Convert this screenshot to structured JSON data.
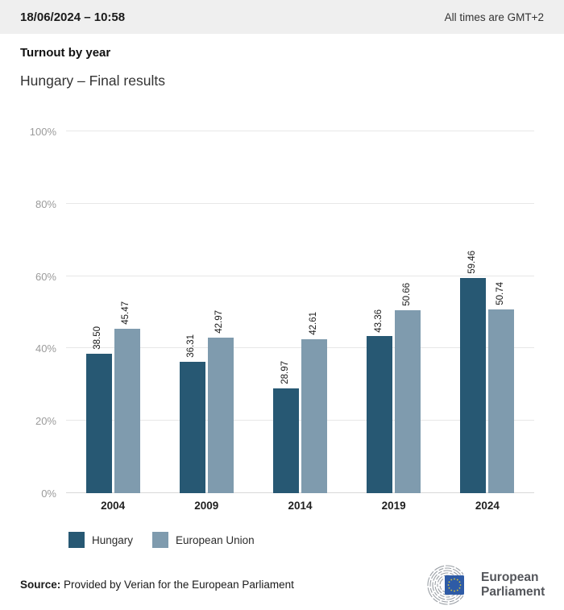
{
  "header": {
    "datetime": "18/06/2024 – 10:58",
    "timezone_note": "All times are GMT+2"
  },
  "title": "Turnout by year",
  "subtitle": "Hungary – Final results",
  "chart_data": {
    "type": "bar",
    "categories": [
      "2004",
      "2009",
      "2014",
      "2019",
      "2024"
    ],
    "series": [
      {
        "name": "Hungary",
        "color": "#275873",
        "values": [
          38.5,
          36.31,
          28.97,
          43.36,
          59.46
        ]
      },
      {
        "name": "European Union",
        "color": "#7f9bae",
        "values": [
          45.47,
          42.97,
          42.61,
          50.66,
          50.74
        ]
      }
    ],
    "value_label_format": "2-decimals-rotated-90",
    "title": "Turnout by year",
    "xlabel": "",
    "ylabel": "",
    "ylim": [
      0,
      100
    ],
    "yticks": [
      "0%",
      "20%",
      "40%",
      "60%",
      "80%",
      "100%"
    ],
    "grid": true,
    "legend_position": "bottom-left"
  },
  "footer": {
    "source_label": "Source:",
    "source_text": " Provided by Verian for the European Parliament"
  },
  "logo": {
    "name": "European Parliament",
    "line1": "European",
    "line2": "Parliament"
  }
}
